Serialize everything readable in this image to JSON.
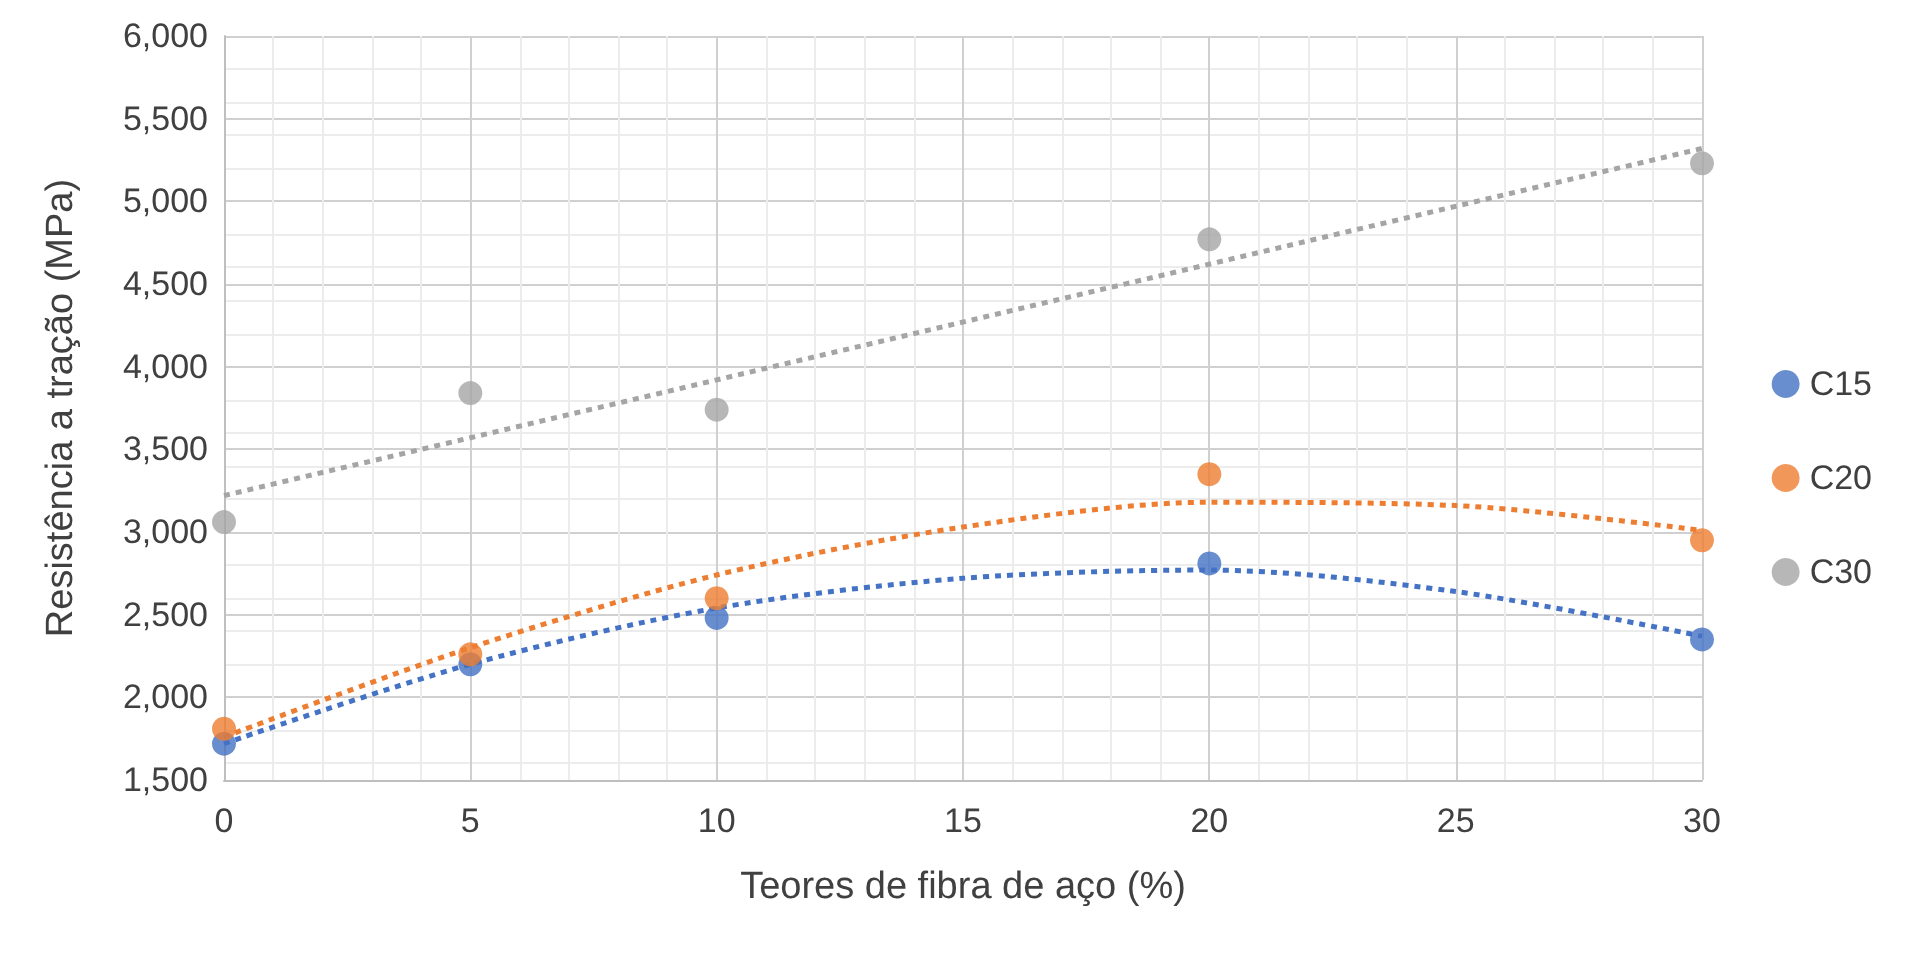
{
  "chart_data": {
    "type": "scatter",
    "xlabel": "Teores de fibra de aço (%)",
    "ylabel": "Resistência a tração (MPa)",
    "x": [
      0,
      5,
      10,
      20,
      30
    ],
    "series": [
      {
        "name": "C15",
        "color": "#4472c4",
        "values": [
          1720,
          2200,
          2480,
          2810,
          2350
        ]
      },
      {
        "name": "C20",
        "color": "#ed7d31",
        "values": [
          1810,
          2260,
          2600,
          3350,
          2950
        ]
      },
      {
        "name": "C30",
        "color": "#a5a5a5",
        "values": [
          3060,
          3840,
          3740,
          4770,
          5230
        ]
      },
      {
        "type": "line",
        "color": "#4472c4",
        "line_style": "dotted",
        "marker": "none",
        "x": [
          0,
          5,
          10,
          15,
          20,
          25,
          30
        ],
        "values": [
          1720,
          2200,
          2540,
          2720,
          2770,
          2640,
          2370
        ]
      },
      {
        "type": "line",
        "color": "#ed7d31",
        "line_style": "dotted",
        "marker": "none",
        "x": [
          0,
          5,
          10,
          15,
          20,
          25,
          30
        ],
        "values": [
          1760,
          2300,
          2740,
          3030,
          3180,
          3160,
          3010
        ]
      },
      {
        "type": "line",
        "color": "#a5a5a5",
        "line_style": "dotted",
        "marker": "none",
        "x": [
          0,
          30
        ],
        "values": [
          3220,
          5320
        ]
      }
    ],
    "xlim": [
      0,
      30
    ],
    "xticks": [
      0,
      5,
      10,
      15,
      20,
      25,
      30
    ],
    "ylim": [
      1500,
      6000
    ],
    "yticks": [
      {
        "value": 1500,
        "label": "1,500"
      },
      {
        "value": 2000,
        "label": "2,000"
      },
      {
        "value": 2500,
        "label": "2,500"
      },
      {
        "value": 3000,
        "label": "3,000"
      },
      {
        "value": 3500,
        "label": "3,500"
      },
      {
        "value": 4000,
        "label": "4,000"
      },
      {
        "value": 4500,
        "label": "4,500"
      },
      {
        "value": 5000,
        "label": "5,000"
      },
      {
        "value": 5500,
        "label": "5,500"
      },
      {
        "value": 6000,
        "label": "6,000"
      }
    ],
    "grid": true,
    "legend": "right",
    "marker": "circle"
  }
}
